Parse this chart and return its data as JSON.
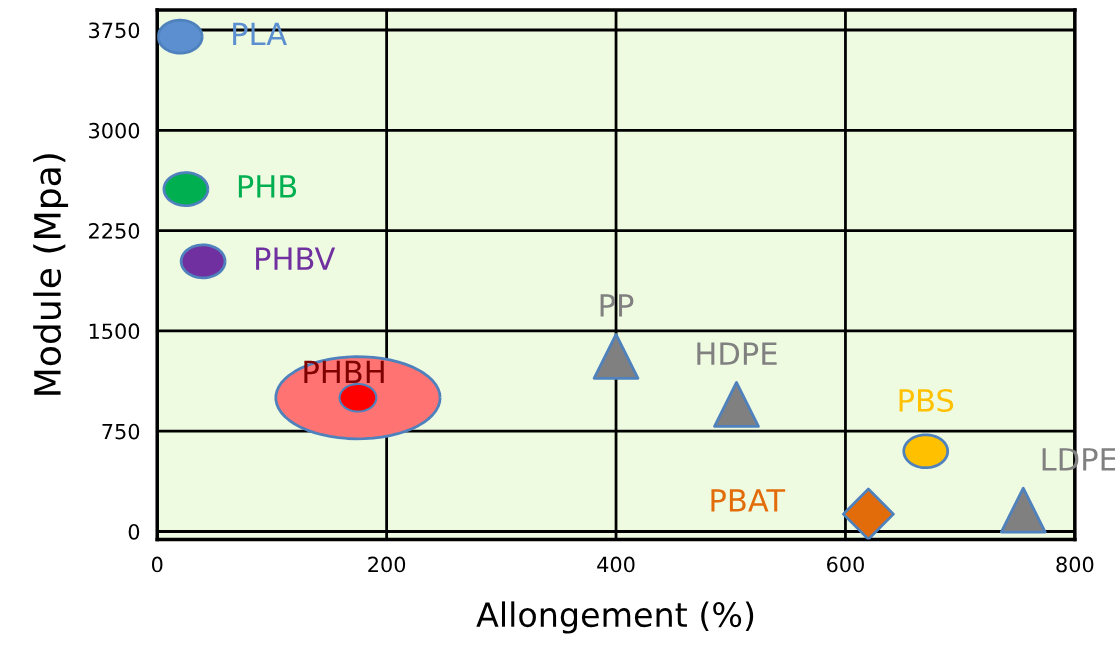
{
  "chart_data": {
    "type": "scatter",
    "xlabel": "Allongement (%)",
    "ylabel": "Module (Mpa)",
    "xlim": [
      0,
      800
    ],
    "xticks": [
      0,
      200,
      400,
      600,
      800
    ],
    "ylim": [
      -60,
      3900
    ],
    "yticks": [
      0,
      750,
      1500,
      2250,
      3000,
      3750
    ],
    "grid": true,
    "series": [
      {
        "name": "PLA",
        "color": "#5b8fd0",
        "marker": "circle",
        "x": [
          20
        ],
        "values": [
          3700
        ]
      },
      {
        "name": "PHB",
        "color": "#00b050",
        "marker": "circle",
        "x": [
          25
        ],
        "values": [
          2560
        ]
      },
      {
        "name": "PHBV",
        "color": "#7030a0",
        "marker": "circle",
        "x": [
          40
        ],
        "values": [
          2020
        ]
      },
      {
        "name": "PHBH",
        "color": "#ff0000",
        "marker": "circle",
        "x": [
          175
        ],
        "values": [
          1000
        ]
      },
      {
        "name": "PP",
        "color": "#808080",
        "marker": "triangle",
        "x": [
          400
        ],
        "values": [
          1310
        ]
      },
      {
        "name": "HDPE",
        "color": "#808080",
        "marker": "triangle",
        "x": [
          505
        ],
        "values": [
          950
        ]
      },
      {
        "name": "PBS",
        "color": "#ffc000",
        "marker": "circle",
        "x": [
          670
        ],
        "values": [
          600
        ]
      },
      {
        "name": "LDPE",
        "color": "#808080",
        "marker": "triangle",
        "x": [
          755
        ],
        "values": [
          160
        ]
      },
      {
        "name": "PBAT",
        "color": "#e36c0a",
        "marker": "diamond",
        "x": [
          620
        ],
        "values": [
          130
        ]
      }
    ]
  }
}
